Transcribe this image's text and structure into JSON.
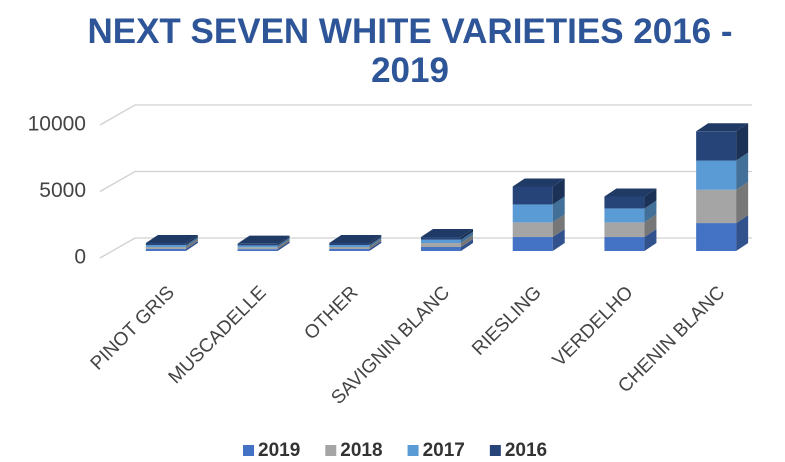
{
  "chart_data": {
    "type": "bar3d_stacked",
    "title": "NEXT SEVEN WHITE VARIETIES 2016 - 2019",
    "categories": [
      "PINOT GRIS",
      "MUSCADELLE",
      "OTHER",
      "SAVIGNIN BLANC",
      "RIESLING",
      "VERDELHO",
      "CHENIN BLANC"
    ],
    "series": [
      {
        "name": "2019",
        "color": "#4472c4",
        "values": [
          150,
          140,
          150,
          300,
          1050,
          1050,
          2100
        ]
      },
      {
        "name": "2018",
        "color": "#a5a5a5",
        "values": [
          150,
          140,
          150,
          300,
          1100,
          1100,
          2500
        ]
      },
      {
        "name": "2017",
        "color": "#5b9bd5",
        "values": [
          150,
          140,
          150,
          250,
          1350,
          1050,
          2200
        ]
      },
      {
        "name": "2016",
        "color": "#264478",
        "values": [
          150,
          130,
          150,
          200,
          1350,
          900,
          2200
        ]
      }
    ],
    "ylim": [
      0,
      10000
    ],
    "yticks": [
      0,
      5000,
      10000
    ],
    "grid": true,
    "legend": "bottom"
  }
}
